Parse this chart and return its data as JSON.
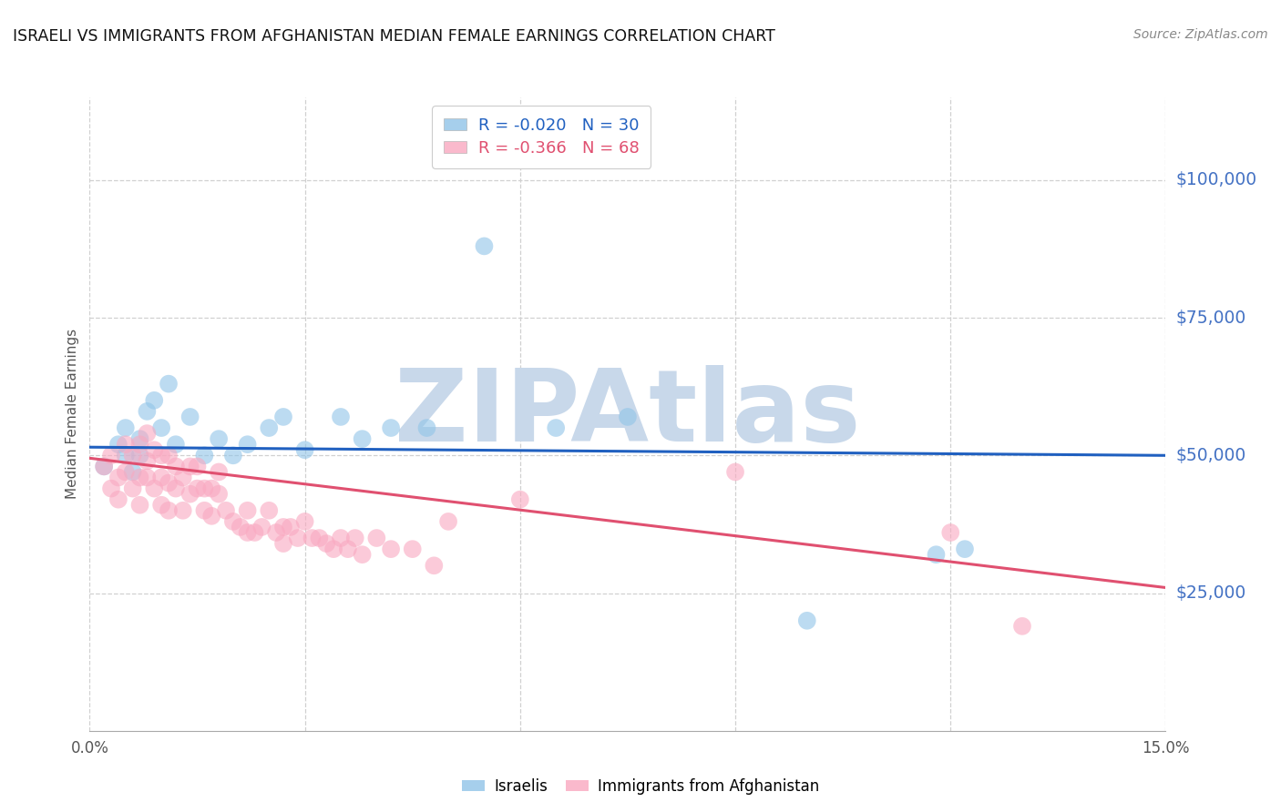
{
  "title": "ISRAELI VS IMMIGRANTS FROM AFGHANISTAN MEDIAN FEMALE EARNINGS CORRELATION CHART",
  "source": "Source: ZipAtlas.com",
  "ylabel": "Median Female Earnings",
  "xlim": [
    0.0,
    0.15
  ],
  "ylim": [
    0,
    115000
  ],
  "yticks": [
    25000,
    50000,
    75000,
    100000
  ],
  "ytick_labels": [
    "$25,000",
    "$50,000",
    "$75,000",
    "$100,000"
  ],
  "xticks": [
    0.0,
    0.03,
    0.06,
    0.09,
    0.12,
    0.15
  ],
  "xtick_labels": [
    "0.0%",
    "",
    "",
    "",
    "",
    "15.0%"
  ],
  "color_blue": "#90c4e8",
  "color_pink": "#f9a8c0",
  "color_line_blue": "#2060c0",
  "color_line_pink": "#e05070",
  "color_axis_label": "#4472c4",
  "watermark": "ZIPAtlas",
  "watermark_color": "#c8d8ea",
  "grid_color": "#d0d0d0",
  "background_color": "#ffffff",
  "israelis_x": [
    0.002,
    0.004,
    0.005,
    0.005,
    0.006,
    0.007,
    0.007,
    0.008,
    0.009,
    0.01,
    0.011,
    0.012,
    0.014,
    0.016,
    0.018,
    0.02,
    0.022,
    0.025,
    0.027,
    0.03,
    0.035,
    0.038,
    0.042,
    0.047,
    0.055,
    0.065,
    0.075,
    0.1,
    0.118,
    0.122
  ],
  "israelis_y": [
    48000,
    52000,
    50000,
    55000,
    47000,
    53000,
    50000,
    58000,
    60000,
    55000,
    63000,
    52000,
    57000,
    50000,
    53000,
    50000,
    52000,
    55000,
    57000,
    51000,
    57000,
    53000,
    55000,
    55000,
    88000,
    55000,
    57000,
    20000,
    32000,
    33000
  ],
  "afghan_x": [
    0.002,
    0.003,
    0.003,
    0.004,
    0.004,
    0.005,
    0.005,
    0.006,
    0.006,
    0.007,
    0.007,
    0.007,
    0.008,
    0.008,
    0.008,
    0.009,
    0.009,
    0.01,
    0.01,
    0.01,
    0.011,
    0.011,
    0.011,
    0.012,
    0.012,
    0.013,
    0.013,
    0.014,
    0.014,
    0.015,
    0.015,
    0.016,
    0.016,
    0.017,
    0.017,
    0.018,
    0.018,
    0.019,
    0.02,
    0.021,
    0.022,
    0.022,
    0.023,
    0.024,
    0.025,
    0.026,
    0.027,
    0.027,
    0.028,
    0.029,
    0.03,
    0.031,
    0.032,
    0.033,
    0.034,
    0.035,
    0.036,
    0.037,
    0.038,
    0.04,
    0.042,
    0.045,
    0.048,
    0.05,
    0.06,
    0.09,
    0.12,
    0.13
  ],
  "afghan_y": [
    48000,
    50000,
    44000,
    46000,
    42000,
    52000,
    47000,
    50000,
    44000,
    52000,
    46000,
    41000,
    49000,
    54000,
    46000,
    51000,
    44000,
    50000,
    46000,
    41000,
    50000,
    45000,
    40000,
    48000,
    44000,
    46000,
    40000,
    48000,
    43000,
    48000,
    44000,
    44000,
    40000,
    44000,
    39000,
    47000,
    43000,
    40000,
    38000,
    37000,
    40000,
    36000,
    36000,
    37000,
    40000,
    36000,
    37000,
    34000,
    37000,
    35000,
    38000,
    35000,
    35000,
    34000,
    33000,
    35000,
    33000,
    35000,
    32000,
    35000,
    33000,
    33000,
    30000,
    38000,
    42000,
    47000,
    36000,
    19000
  ],
  "blue_line_x": [
    0.0,
    0.15
  ],
  "blue_line_y": [
    51500,
    50000
  ],
  "pink_line_x": [
    0.0,
    0.15
  ],
  "pink_line_y": [
    49500,
    26000
  ]
}
